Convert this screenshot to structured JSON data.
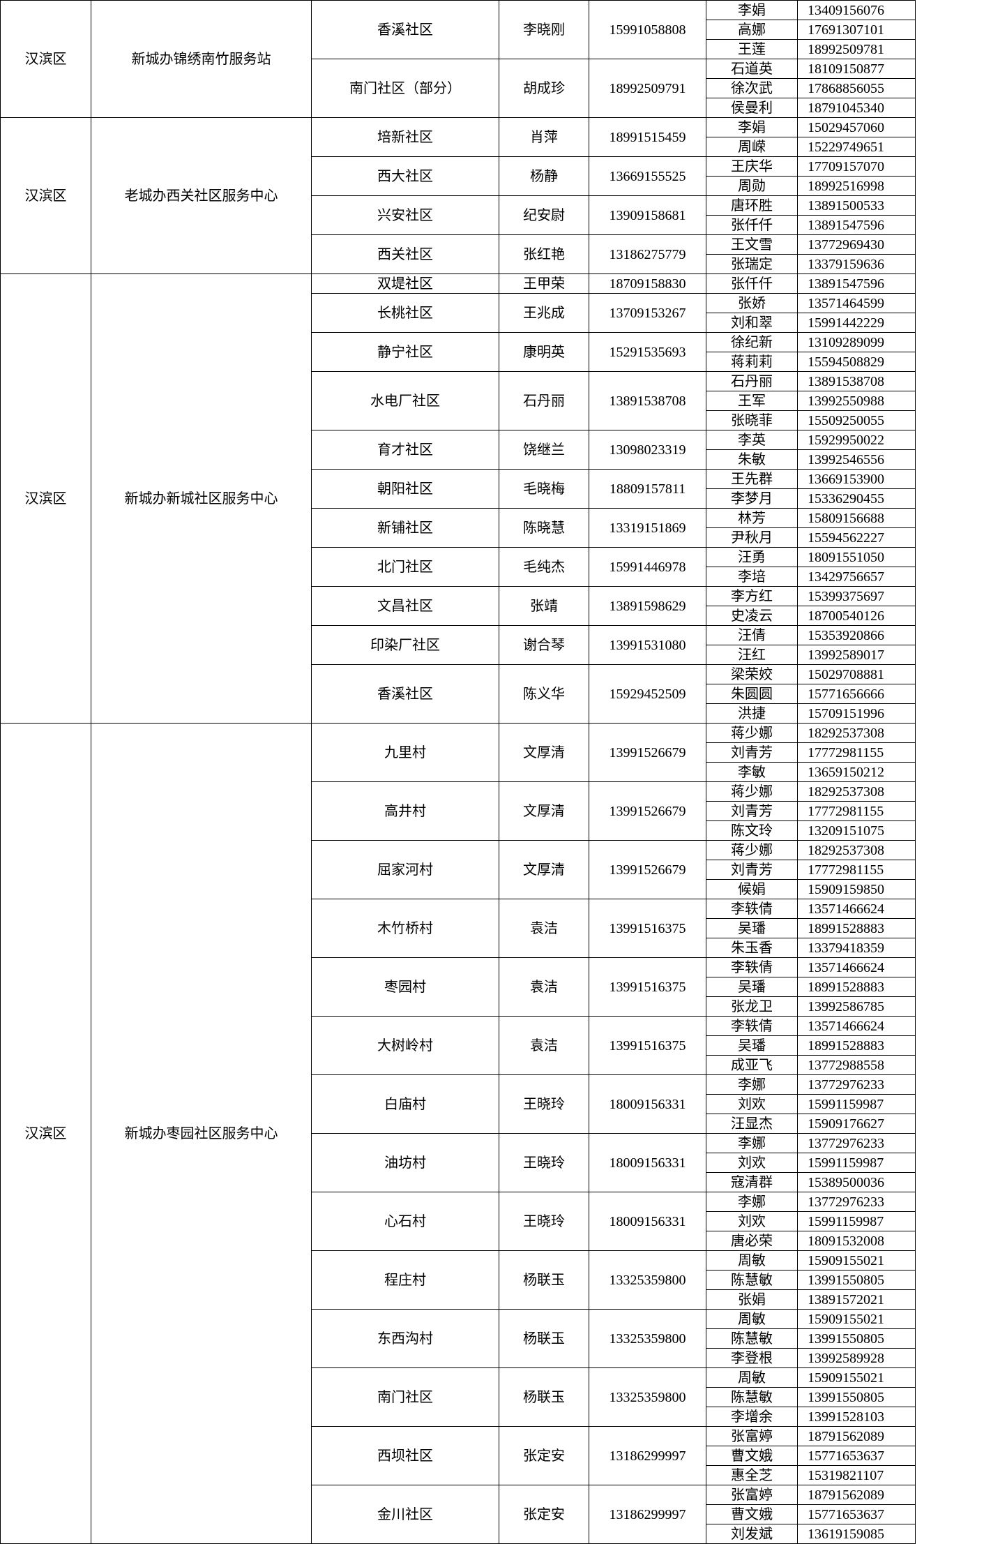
{
  "groups": [
    {
      "district": "汉滨区",
      "center": "新城办锦绣南竹服务站",
      "units": [
        {
          "name": "香溪社区",
          "leader": "李晓刚",
          "phone": "15991058808",
          "members": [
            {
              "name": "李娟",
              "phone": "13409156076"
            },
            {
              "name": "高娜",
              "phone": "17691307101"
            },
            {
              "name": "王莲",
              "phone": "18992509781"
            }
          ]
        },
        {
          "name": "南门社区（部分）",
          "leader": "胡成珍",
          "phone": "18992509791",
          "members": [
            {
              "name": "石道英",
              "phone": "18109150877"
            },
            {
              "name": "徐次武",
              "phone": "17868856055"
            },
            {
              "name": "侯曼利",
              "phone": "18791045340"
            }
          ]
        }
      ]
    },
    {
      "district": "汉滨区",
      "center": "老城办西关社区服务中心",
      "units": [
        {
          "name": "培新社区",
          "leader": "肖萍",
          "phone": "18991515459",
          "members": [
            {
              "name": "李娟",
              "phone": "15029457060"
            },
            {
              "name": "周嵘",
              "phone": "15229749651"
            }
          ]
        },
        {
          "name": "西大社区",
          "leader": "杨静",
          "phone": "13669155525",
          "members": [
            {
              "name": "王庆华",
              "phone": "17709157070"
            },
            {
              "name": "周勋",
              "phone": "18992516998"
            }
          ]
        },
        {
          "name": "兴安社区",
          "leader": "纪安尉",
          "phone": "13909158681",
          "members": [
            {
              "name": "唐环胜",
              "phone": "13891500533"
            },
            {
              "name": "张仟仟",
              "phone": "13891547596"
            }
          ]
        },
        {
          "name": "西关社区",
          "leader": "张红艳",
          "phone": "13186275779",
          "members": [
            {
              "name": "王文雪",
              "phone": "13772969430"
            },
            {
              "name": "张瑞定",
              "phone": "13379159636"
            }
          ]
        }
      ]
    },
    {
      "district": "汉滨区",
      "center": "新城办新城社区服务中心",
      "units": [
        {
          "name": "双堤社区",
          "leader": "王甲荣",
          "phone": "18709158830",
          "members": [
            {
              "name": "张仟仟",
              "phone": "13891547596"
            }
          ]
        },
        {
          "name": "长桃社区",
          "leader": "王兆成",
          "phone": "13709153267",
          "members": [
            {
              "name": "张娇",
              "phone": "13571464599"
            },
            {
              "name": "刘和翠",
              "phone": "15991442229"
            }
          ]
        },
        {
          "name": "静宁社区",
          "leader": "康明英",
          "phone": "15291535693",
          "members": [
            {
              "name": "徐纪新",
              "phone": "13109289099"
            },
            {
              "name": "蒋莉莉",
              "phone": "15594508829"
            }
          ]
        },
        {
          "name": "水电厂社区",
          "leader": "石丹丽",
          "phone": "13891538708",
          "members": [
            {
              "name": "石丹丽",
              "phone": "13891538708"
            },
            {
              "name": "王军",
              "phone": "13992550988"
            },
            {
              "name": "张晓菲",
              "phone": "15509250055"
            }
          ]
        },
        {
          "name": "育才社区",
          "leader": "饶继兰",
          "phone": "13098023319",
          "members": [
            {
              "name": "李英",
              "phone": "15929950022"
            },
            {
              "name": "朱敏",
              "phone": "13992546556"
            }
          ]
        },
        {
          "name": "朝阳社区",
          "leader": "毛晓梅",
          "phone": "18809157811",
          "members": [
            {
              "name": "王先群",
              "phone": "13669153900"
            },
            {
              "name": "李梦月",
              "phone": "15336290455"
            }
          ]
        },
        {
          "name": "新铺社区",
          "leader": "陈晓慧",
          "phone": "13319151869",
          "members": [
            {
              "name": "林芳",
              "phone": "15809156688"
            },
            {
              "name": "尹秋月",
              "phone": "15594562227"
            }
          ]
        },
        {
          "name": "北门社区",
          "leader": "毛纯杰",
          "phone": "15991446978",
          "members": [
            {
              "name": "汪勇",
              "phone": "18091551050"
            },
            {
              "name": "李培",
              "phone": "13429756657"
            }
          ]
        },
        {
          "name": "文昌社区",
          "leader": "张靖",
          "phone": "13891598629",
          "members": [
            {
              "name": "李方红",
              "phone": "15399375697"
            },
            {
              "name": "史凌云",
              "phone": "18700540126"
            }
          ]
        },
        {
          "name": "印染厂社区",
          "leader": "谢合琴",
          "phone": "13991531080",
          "members": [
            {
              "name": "汪倩",
              "phone": "15353920866"
            },
            {
              "name": "汪红",
              "phone": "13992589017"
            }
          ]
        },
        {
          "name": "香溪社区",
          "leader": "陈义华",
          "phone": "15929452509",
          "members": [
            {
              "name": "梁荣姣",
              "phone": "15029708881"
            },
            {
              "name": "朱圆圆",
              "phone": "15771656666"
            },
            {
              "name": "洪捷",
              "phone": "15709151996"
            }
          ]
        }
      ]
    },
    {
      "district": "汉滨区",
      "center": "新城办枣园社区服务中心",
      "units": [
        {
          "name": "九里村",
          "leader": "文厚清",
          "phone": "13991526679",
          "members": [
            {
              "name": "蒋少娜",
              "phone": "18292537308"
            },
            {
              "name": "刘青芳",
              "phone": "17772981155"
            },
            {
              "name": "李敏",
              "phone": "13659150212"
            }
          ]
        },
        {
          "name": "高井村",
          "leader": "文厚清",
          "phone": "13991526679",
          "members": [
            {
              "name": "蒋少娜",
              "phone": "18292537308"
            },
            {
              "name": "刘青芳",
              "phone": "17772981155"
            },
            {
              "name": "陈文玲",
              "phone": "13209151075"
            }
          ]
        },
        {
          "name": "屈家河村",
          "leader": "文厚清",
          "phone": "13991526679",
          "members": [
            {
              "name": "蒋少娜",
              "phone": "18292537308"
            },
            {
              "name": "刘青芳",
              "phone": "17772981155"
            },
            {
              "name": "候娟",
              "phone": "15909159850"
            }
          ]
        },
        {
          "name": "木竹桥村",
          "leader": "袁洁",
          "phone": "13991516375",
          "members": [
            {
              "name": "李轶倩",
              "phone": "13571466624"
            },
            {
              "name": "吴璠",
              "phone": "18991528883"
            },
            {
              "name": "朱玉香",
              "phone": "13379418359"
            }
          ]
        },
        {
          "name": "枣园村",
          "leader": "袁洁",
          "phone": "13991516375",
          "members": [
            {
              "name": "李轶倩",
              "phone": "13571466624"
            },
            {
              "name": "吴璠",
              "phone": "18991528883"
            },
            {
              "name": "张龙卫",
              "phone": "13992586785"
            }
          ]
        },
        {
          "name": "大树岭村",
          "leader": "袁洁",
          "phone": "13991516375",
          "members": [
            {
              "name": "李轶倩",
              "phone": "13571466624"
            },
            {
              "name": "吴璠",
              "phone": "18991528883"
            },
            {
              "name": "成亚飞",
              "phone": "13772988558"
            }
          ]
        },
        {
          "name": "白庙村",
          "leader": "王晓玲",
          "phone": "18009156331",
          "members": [
            {
              "name": "李娜",
              "phone": "13772976233"
            },
            {
              "name": "刘欢",
              "phone": "15991159987"
            },
            {
              "name": "汪显杰",
              "phone": "15909176627"
            }
          ]
        },
        {
          "name": "油坊村",
          "leader": "王晓玲",
          "phone": "18009156331",
          "members": [
            {
              "name": "李娜",
              "phone": "13772976233"
            },
            {
              "name": "刘欢",
              "phone": "15991159987"
            },
            {
              "name": "寇清群",
              "phone": "15389500036"
            }
          ]
        },
        {
          "name": "心石村",
          "leader": "王晓玲",
          "phone": "18009156331",
          "members": [
            {
              "name": "李娜",
              "phone": "13772976233"
            },
            {
              "name": "刘欢",
              "phone": "15991159987"
            },
            {
              "name": "唐必荣",
              "phone": "18091532008"
            }
          ]
        },
        {
          "name": "程庄村",
          "leader": "杨联玉",
          "phone": "13325359800",
          "members": [
            {
              "name": "周敏",
              "phone": "15909155021"
            },
            {
              "name": "陈慧敏",
              "phone": "13991550805"
            },
            {
              "name": "张娟",
              "phone": "13891572021"
            }
          ]
        },
        {
          "name": "东西沟村",
          "leader": "杨联玉",
          "phone": "13325359800",
          "members": [
            {
              "name": "周敏",
              "phone": "15909155021"
            },
            {
              "name": "陈慧敏",
              "phone": "13991550805"
            },
            {
              "name": "李登根",
              "phone": "13992589928"
            }
          ]
        },
        {
          "name": "南门社区",
          "leader": "杨联玉",
          "phone": "13325359800",
          "members": [
            {
              "name": "周敏",
              "phone": "15909155021"
            },
            {
              "name": "陈慧敏",
              "phone": "13991550805"
            },
            {
              "name": "李增余",
              "phone": "13991528103"
            }
          ]
        },
        {
          "name": "西坝社区",
          "leader": "张定安",
          "phone": "13186299997",
          "members": [
            {
              "name": "张富婷",
              "phone": "18791562089"
            },
            {
              "name": "曹文娥",
              "phone": "15771653637"
            },
            {
              "name": "惠全芝",
              "phone": "15319821107"
            }
          ]
        },
        {
          "name": "金川社区",
          "leader": "张定安",
          "phone": "13186299997",
          "members": [
            {
              "name": "张富婷",
              "phone": "18791562089"
            },
            {
              "name": "曹文娥",
              "phone": "15771653637"
            },
            {
              "name": "刘发斌",
              "phone": "13619159085"
            }
          ]
        }
      ]
    }
  ]
}
